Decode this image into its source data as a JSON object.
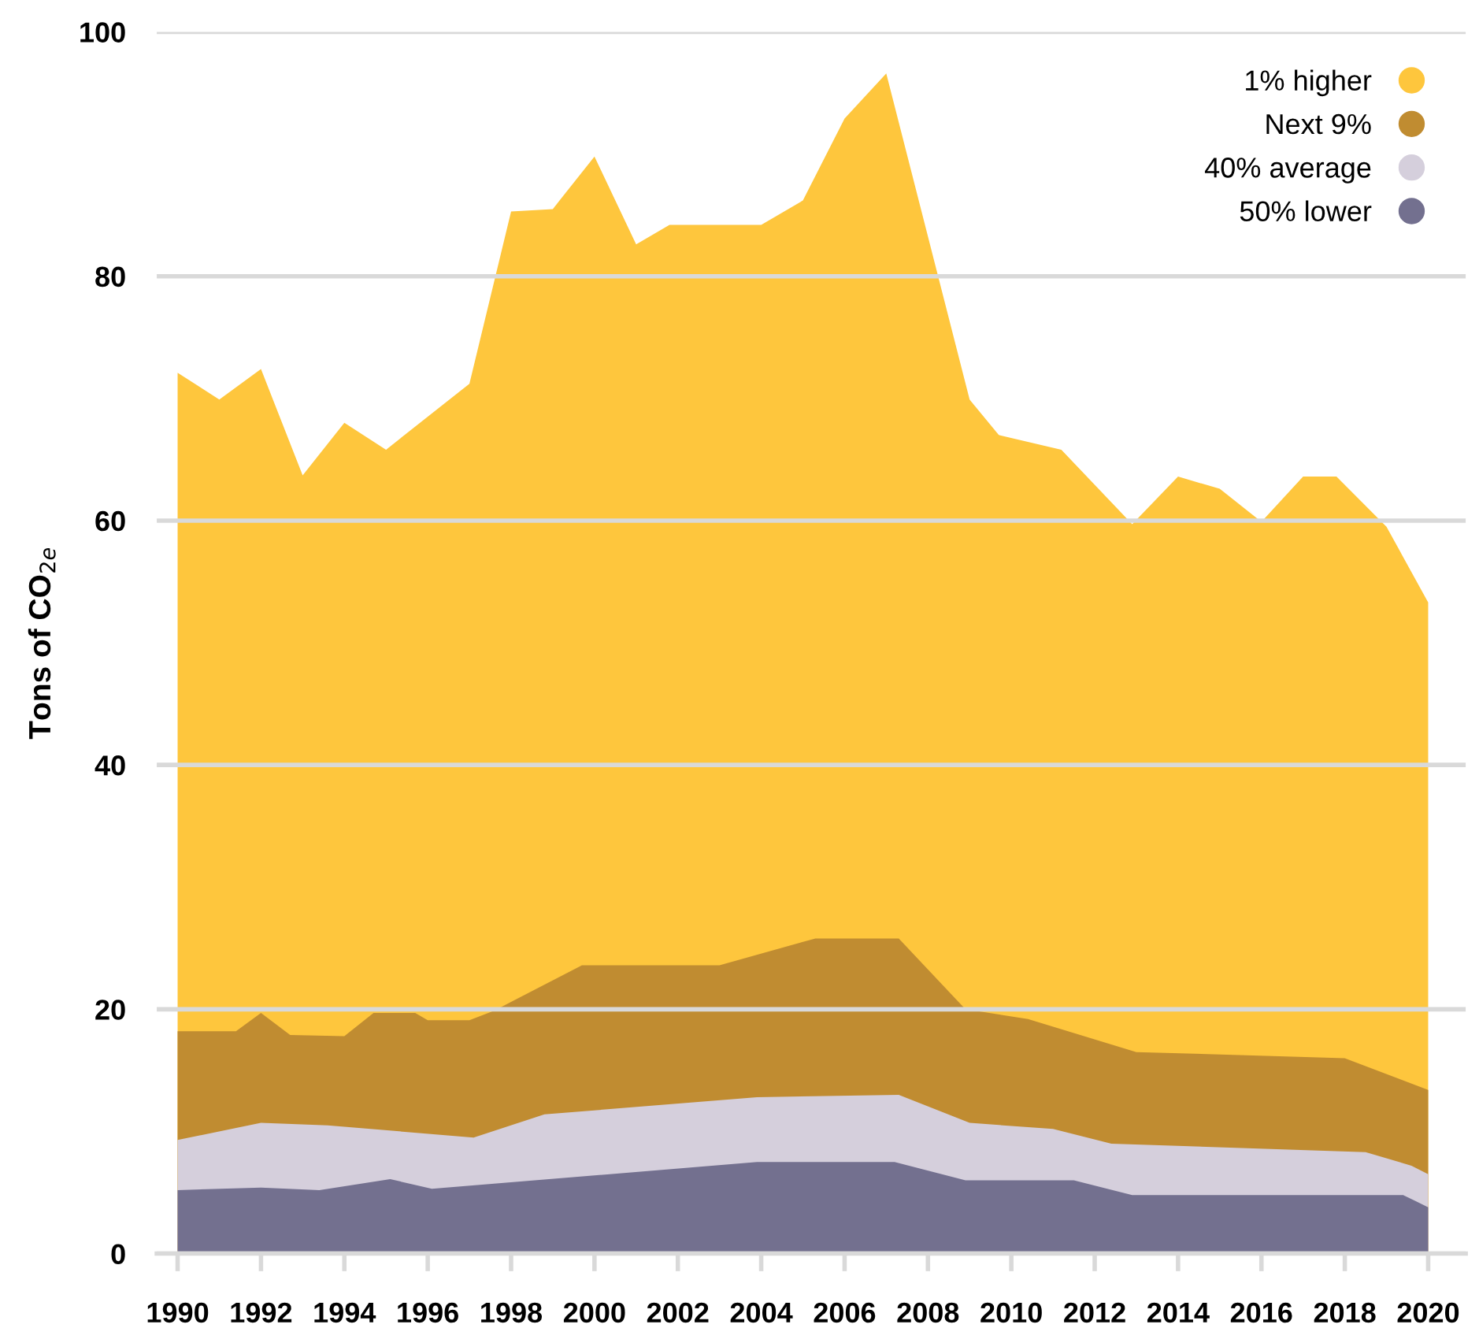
{
  "chart_data": {
    "type": "area",
    "ylabel": "Tons of CO$_{2e}$",
    "xlim": [
      1989.5,
      2020.9
    ],
    "xticks": [
      1990,
      1992,
      1994,
      1996,
      1998,
      2000,
      2002,
      2004,
      2006,
      2008,
      2010,
      2012,
      2014,
      2016,
      2018,
      2020
    ],
    "ylim": [
      0,
      100
    ],
    "yticks": [
      0,
      20,
      40,
      60,
      80,
      100
    ],
    "grid": "y",
    "legend": "top right",
    "series": [
      {
        "name": "1% higher",
        "color": "#fec63d",
        "x": [
          1990,
          1991,
          1992,
          1993,
          1994,
          1995,
          1997,
          1998,
          1999,
          2000,
          2001,
          2001.8,
          2004,
          2005,
          2006,
          2007,
          2009,
          2009.7,
          2011.2,
          2012.9,
          2014,
          2015,
          2016,
          2017,
          2017.8,
          2019,
          2020
        ],
        "values": [
          72.1,
          69.9,
          72.4,
          63.7,
          68.0,
          65.8,
          71.2,
          85.3,
          85.5,
          89.8,
          82.6,
          84.2,
          84.2,
          86.2,
          92.9,
          96.6,
          69.9,
          67.0,
          65.8,
          59.7,
          63.6,
          62.6,
          59.9,
          63.6,
          63.6,
          59.5,
          53.3
        ]
      },
      {
        "name": "Next 9%",
        "color": "#c08c31",
        "x": [
          1990,
          1991.4,
          1992,
          1992.7,
          1994,
          1994.7,
          1995.7,
          1996,
          1997,
          1997.6,
          1999.7,
          2003,
          2005.3,
          2007.3,
          2008.9,
          2010.4,
          2013,
          2018,
          2020
        ],
        "values": [
          18.2,
          18.2,
          19.7,
          17.9,
          17.8,
          19.7,
          19.7,
          19.1,
          19.1,
          19.9,
          23.6,
          23.6,
          25.8,
          25.8,
          20.0,
          19.2,
          16.5,
          16.0,
          13.4
        ]
      },
      {
        "name": "40% average",
        "color": "#d5cfdc",
        "x": [
          1990,
          1992,
          1993.6,
          1997.1,
          1998.8,
          2003.9,
          2007.3,
          2009,
          2011,
          2012.4,
          2018.5,
          2019.6,
          2020
        ],
        "values": [
          9.3,
          10.7,
          10.5,
          9.5,
          11.4,
          12.8,
          13.0,
          10.7,
          10.2,
          9.0,
          8.3,
          7.2,
          6.5
        ]
      },
      {
        "name": "50% lower",
        "color": "#73708f",
        "x": [
          1990,
          1992,
          1993.4,
          1995.1,
          1996.1,
          2003.9,
          2007.2,
          2008.9,
          2011.5,
          2012.9,
          2019.4,
          2020
        ],
        "values": [
          5.2,
          5.4,
          5.2,
          6.1,
          5.3,
          7.5,
          7.5,
          6.0,
          6.0,
          4.8,
          4.8,
          3.8
        ]
      }
    ]
  }
}
